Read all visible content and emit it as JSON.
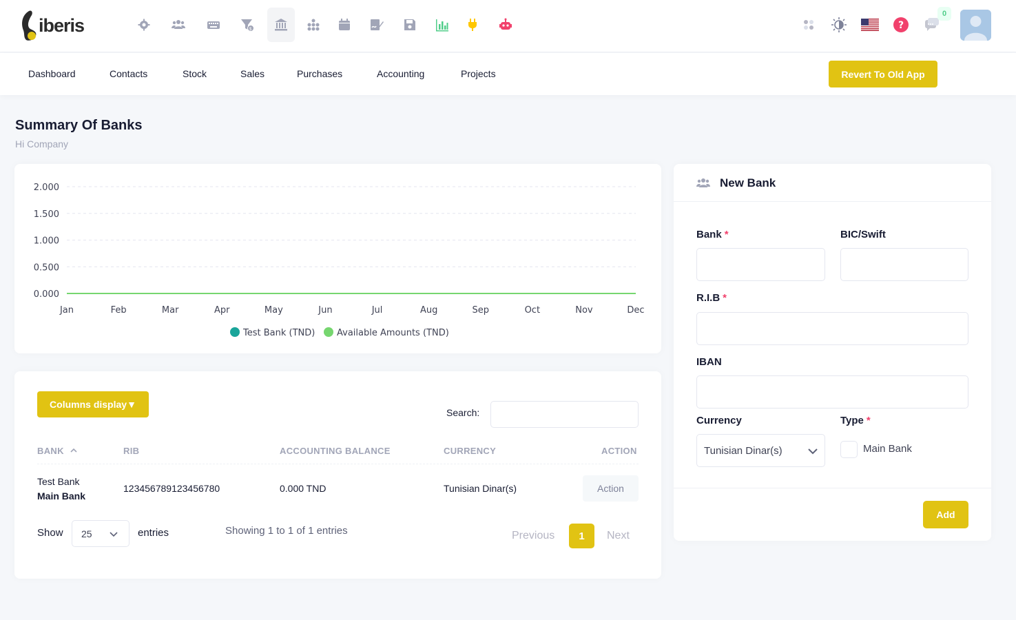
{
  "brand": {
    "logo_text": "iberis",
    "accent": "#e1c313"
  },
  "top_icons": [
    {
      "name": "settings-gear-icon",
      "color": "#a1a5b7"
    },
    {
      "name": "contacts-users-icon",
      "color": "#a1a5b7"
    },
    {
      "name": "keyboard-icon",
      "color": "#a1a5b7"
    },
    {
      "name": "filter-money-icon",
      "color": "#a1a5b7"
    },
    {
      "name": "bank-icon",
      "color": "#a1a5b7"
    },
    {
      "name": "hierarchy-icon",
      "color": "#a1a5b7"
    },
    {
      "name": "calendar-icon",
      "color": "#a1a5b7"
    },
    {
      "name": "signature-icon",
      "color": "#a1a5b7"
    },
    {
      "name": "save-floppy-icon",
      "color": "#a1a5b7"
    },
    {
      "name": "bar-chart-icon",
      "color": "#50cd89"
    },
    {
      "name": "plug-icon",
      "color": "#ffc700"
    },
    {
      "name": "robot-icon",
      "color": "#f1416c"
    }
  ],
  "header_right": {
    "apps_icon": "grid-dots-icon",
    "theme_icon": "sun-icon",
    "flag_icon": "us-flag-icon",
    "help_icon": "help-question-icon",
    "chat_icon": "chat-icon",
    "notification_count": "0"
  },
  "menu": {
    "items": [
      "Dashboard",
      "Contacts",
      "Stock",
      "Sales",
      "Purchases",
      "Accounting",
      "Projects"
    ],
    "revert_label": "Revert To Old App"
  },
  "page": {
    "title": "Summary Of Banks",
    "subtitle": "Hi Company"
  },
  "chart_data": {
    "type": "line",
    "x": [
      "Jan",
      "Feb",
      "Mar",
      "Apr",
      "May",
      "Jun",
      "Jul",
      "Aug",
      "Sep",
      "Oct",
      "Nov",
      "Dec"
    ],
    "series": [
      {
        "name": "Test Bank (TND)",
        "color": "#1aa59a",
        "values": [
          0,
          0,
          0,
          0,
          0,
          0,
          0,
          0,
          0,
          0,
          0,
          0
        ]
      },
      {
        "name": "Available Amounts (TND)",
        "color": "#76d66f",
        "values": [
          0,
          0,
          0,
          0,
          0,
          0,
          0,
          0,
          0,
          0,
          0,
          0
        ]
      }
    ],
    "y_ticks": [
      "0.000",
      "0.500",
      "1.000",
      "1.500",
      "2.000"
    ],
    "ylim": [
      0,
      2
    ],
    "grid": true,
    "legend_position": "bottom"
  },
  "table": {
    "columns_display_label": "Columns display▼",
    "search_label": "Search:",
    "search_value": "",
    "headers": {
      "bank": "BANK",
      "rib": "RIB",
      "balance": "ACCOUNTING BALANCE",
      "currency": "CURRENCY",
      "action": "ACTION"
    },
    "rows": [
      {
        "bank": "Test Bank",
        "bank_tag": "Main Bank",
        "rib": "123456789123456780",
        "balance": "0.000 TND",
        "currency": "Tunisian Dinar(s)",
        "action": "Action"
      }
    ],
    "show_label": "Show",
    "entries_value": "25",
    "entries_label": "entries",
    "showing_text": "Showing 1 to 1 of 1 entries",
    "pagination": {
      "previous": "Previous",
      "current": "1",
      "next": "Next"
    }
  },
  "form": {
    "title": "New Bank",
    "bank_label": "Bank",
    "bic_label": "BIC/Swift",
    "rib_label": "R.I.B",
    "iban_label": "IBAN",
    "currency_label": "Currency",
    "currency_value": "Tunisian Dinar(s)",
    "type_label": "Type",
    "main_bank_label": "Main Bank",
    "required_mark": "*",
    "add_label": "Add"
  }
}
